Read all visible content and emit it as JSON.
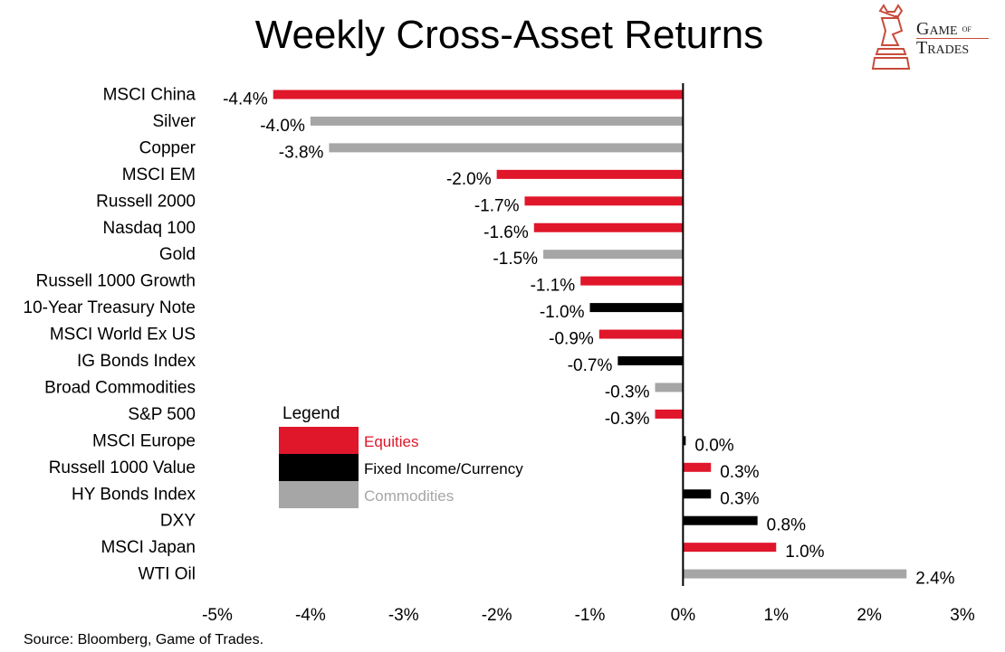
{
  "title": "Weekly Cross-Asset Returns",
  "source": "Source: Bloomberg, Game of Trades.",
  "logo": {
    "line1": "Game",
    "of": "of",
    "line2": "Trades"
  },
  "colors": {
    "equities": "#e0162b",
    "fixed_income": "#000000",
    "commodities": "#a6a6a6"
  },
  "legend": {
    "title": "Legend",
    "items": [
      {
        "label": "Equities",
        "class": "equities"
      },
      {
        "label": "Fixed Income/Currency",
        "class": "fixed_income"
      },
      {
        "label": "Commodities",
        "class": "commodities"
      }
    ]
  },
  "chart_data": {
    "type": "bar",
    "orientation": "horizontal",
    "title": "Weekly Cross-Asset Returns",
    "categories": [
      "MSCI China",
      "Silver",
      "Copper",
      "MSCI EM",
      "Russell 2000",
      "Nasdaq 100",
      "Gold",
      "Russell 1000 Growth",
      "10-Year Treasury Note",
      "MSCI World Ex US",
      "IG Bonds Index",
      "Broad Commodities",
      "S&P 500",
      "MSCI Europe",
      "Russell 1000 Value",
      "HY Bonds Index",
      "DXY",
      "MSCI Japan",
      "WTI Oil"
    ],
    "values": [
      -4.4,
      -4.0,
      -3.8,
      -2.0,
      -1.7,
      -1.6,
      -1.5,
      -1.1,
      -1.0,
      -0.9,
      -0.7,
      -0.3,
      -0.3,
      0.0,
      0.3,
      0.3,
      0.8,
      1.0,
      2.4
    ],
    "labels": [
      "-4.4%",
      "-4.0%",
      "-3.8%",
      "-2.0%",
      "-1.7%",
      "-1.6%",
      "-1.5%",
      "-1.1%",
      "-1.0%",
      "-0.9%",
      "-0.7%",
      "-0.3%",
      "-0.3%",
      "0.0%",
      "0.3%",
      "0.3%",
      "0.8%",
      "1.0%",
      "2.4%"
    ],
    "classes": [
      "equities",
      "commodities",
      "commodities",
      "equities",
      "equities",
      "equities",
      "commodities",
      "equities",
      "fixed_income",
      "equities",
      "fixed_income",
      "commodities",
      "equities",
      "fixed_income",
      "equities",
      "fixed_income",
      "fixed_income",
      "equities",
      "commodities"
    ],
    "xlim": [
      -5,
      3
    ],
    "xticks": [
      -5,
      -4,
      -3,
      -2,
      -1,
      0,
      1,
      2,
      3
    ],
    "xtick_labels": [
      "-5%",
      "-4%",
      "-3%",
      "-2%",
      "-1%",
      "0%",
      "1%",
      "2%",
      "3%"
    ],
    "xlabel": "",
    "ylabel": ""
  }
}
